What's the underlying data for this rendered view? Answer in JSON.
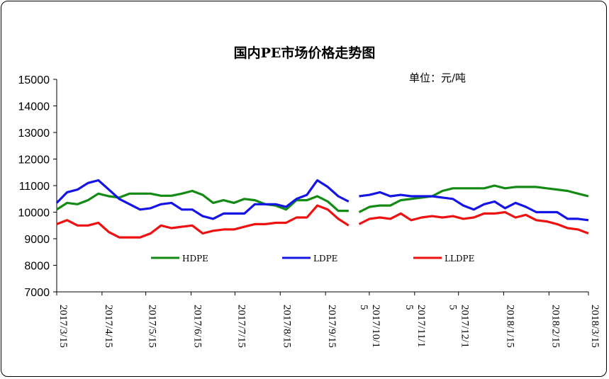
{
  "chart_data": {
    "type": "line",
    "title": "国内PE市场价格走势图",
    "unit_label": "单位：元/吨",
    "xlabel": "",
    "ylabel": "",
    "ylim": [
      7000,
      15000
    ],
    "yticks": [
      7000,
      8000,
      9000,
      10000,
      11000,
      12000,
      13000,
      14000,
      15000
    ],
    "x_tick_labels": [
      "2017/3/15",
      "2017/4/15",
      "2017/5/15",
      "2017/6/15",
      "2017/7/15",
      "2017/8/15",
      "2017/9/15",
      "2017/10/1 5",
      "2017/11/1 5",
      "2017/12/1 5",
      "2018/1/15",
      "2018/2/15",
      "2018/3/15"
    ],
    "legend_placement": "inside-bottom",
    "grid": false,
    "segment_break_after_week": 29,
    "series": [
      {
        "name": "HDPE",
        "color": "#138a13",
        "values": [
          10100,
          10350,
          10300,
          10450,
          10700,
          10600,
          10550,
          10700,
          10700,
          10700,
          10620,
          10620,
          10700,
          10800,
          10650,
          10350,
          10450,
          10350,
          10500,
          10450,
          10300,
          10250,
          10100,
          10450,
          10450,
          10600,
          10400,
          10050,
          10050,
          10000,
          10200,
          10250,
          10250,
          10450,
          10500,
          10550,
          10600,
          10800,
          10900,
          10900,
          10900,
          10900,
          11000,
          10900,
          10950,
          10950,
          10950,
          10900,
          10850,
          10800,
          10700,
          10600
        ]
      },
      {
        "name": "LDPE",
        "color": "#1414e6",
        "values": [
          10350,
          10750,
          10850,
          11100,
          11200,
          10850,
          10500,
          10300,
          10100,
          10150,
          10300,
          10350,
          10100,
          10100,
          9850,
          9750,
          9950,
          9950,
          9950,
          10300,
          10300,
          10300,
          10200,
          10500,
          10650,
          11200,
          10950,
          10600,
          10400,
          10600,
          10650,
          10750,
          10600,
          10650,
          10600,
          10600,
          10600,
          10550,
          10500,
          10250,
          10100,
          10300,
          10400,
          10150,
          10350,
          10200,
          10000,
          10000,
          10000,
          9750,
          9750,
          9700
        ]
      },
      {
        "name": "LLDPE",
        "color": "#ee1111",
        "values": [
          9550,
          9700,
          9500,
          9500,
          9600,
          9250,
          9050,
          9050,
          9050,
          9200,
          9500,
          9400,
          9450,
          9500,
          9200,
          9300,
          9350,
          9350,
          9450,
          9550,
          9550,
          9600,
          9600,
          9800,
          9800,
          10250,
          10100,
          9750,
          9500,
          9550,
          9750,
          9800,
          9750,
          9950,
          9700,
          9800,
          9850,
          9800,
          9850,
          9750,
          9800,
          9950,
          9950,
          10000,
          9800,
          9900,
          9700,
          9650,
          9550,
          9400,
          9350,
          9200
        ]
      }
    ]
  }
}
